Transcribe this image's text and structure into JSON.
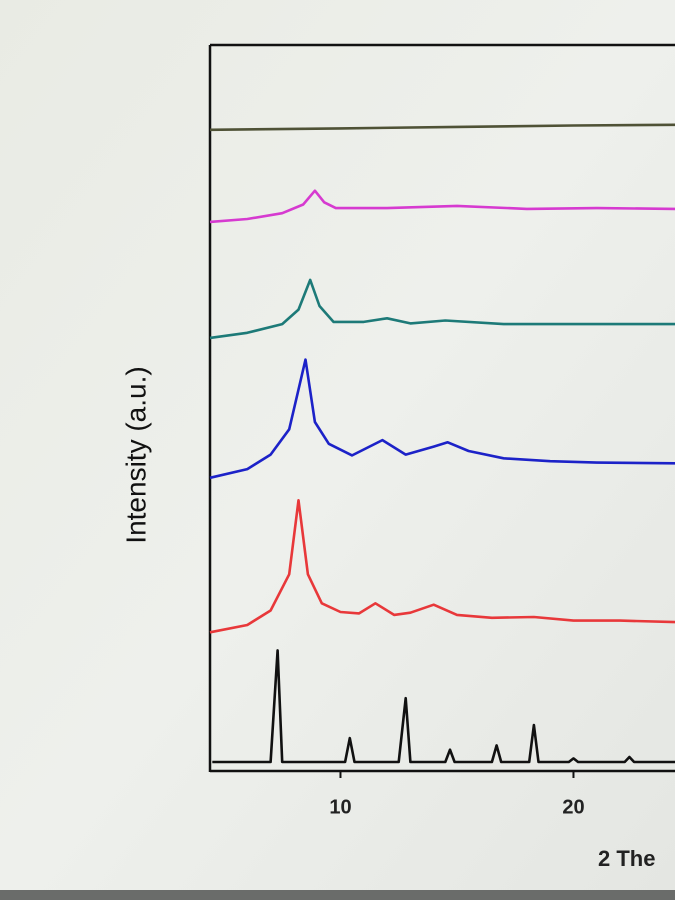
{
  "chart_data": {
    "type": "line",
    "y_label": "Intensity (a.u.)",
    "x_label": "2 The",
    "xlim": [
      4.4,
      24.4
    ],
    "xticks": [
      10,
      20
    ],
    "ylim": [
      0,
      100
    ],
    "series": [
      {
        "color": "#111111",
        "x": [
          4.5,
          7.0,
          7.3,
          7.5,
          10.2,
          10.4,
          10.6,
          12.5,
          12.8,
          13.0,
          14.5,
          14.7,
          14.9,
          16.5,
          16.7,
          16.9,
          18.1,
          18.3,
          18.5,
          19.8,
          20.0,
          20.2,
          22.2,
          22.4,
          22.6,
          24.4
        ],
        "values": [
          1.1,
          1.1,
          16.5,
          1.1,
          1.1,
          4.4,
          1.1,
          1.1,
          9.9,
          1.1,
          1.1,
          2.8,
          1.1,
          1.1,
          3.4,
          1.1,
          1.1,
          6.2,
          1.1,
          1.1,
          1.6,
          1.1,
          1.1,
          1.8,
          1.1,
          1.1
        ]
      },
      {
        "color": "#e8383a",
        "x": [
          4.4,
          6,
          7,
          7.8,
          8.2,
          8.6,
          9.2,
          10,
          10.8,
          11.5,
          12.3,
          13,
          14,
          15,
          16.5,
          18.3,
          20,
          22,
          24.4
        ],
        "values": [
          19,
          20,
          22,
          27,
          37.2,
          27,
          23,
          21.8,
          21.6,
          23,
          21.4,
          21.7,
          22.8,
          21.4,
          21,
          21.1,
          20.6,
          20.6,
          20.4
        ]
      },
      {
        "color": "#1c22c8",
        "x": [
          4.4,
          6,
          7,
          7.8,
          8.5,
          8.9,
          9.5,
          10.5,
          11.8,
          12.8,
          14,
          14.6,
          15.5,
          17,
          19,
          21,
          24.4
        ],
        "values": [
          40.3,
          41.5,
          43.5,
          47,
          56.6,
          48,
          45,
          43.4,
          45.5,
          43.5,
          44.6,
          45.2,
          44,
          43,
          42.6,
          42.4,
          42.3
        ]
      },
      {
        "color": "#1d7a78",
        "x": [
          4.4,
          6,
          7.5,
          8.2,
          8.7,
          9.1,
          9.7,
          11,
          12,
          13,
          14.5,
          17,
          20,
          24.4
        ],
        "values": [
          59.6,
          60.3,
          61.5,
          63.5,
          67.6,
          64,
          61.8,
          61.8,
          62.3,
          61.6,
          62,
          61.5,
          61.5,
          61.5
        ]
      },
      {
        "color": "#d63ad0",
        "x": [
          4.4,
          6,
          7.5,
          8.4,
          8.9,
          9.3,
          9.8,
          12,
          15,
          18,
          21,
          24.4
        ],
        "values": [
          75.6,
          76,
          76.8,
          78,
          79.9,
          78.3,
          77.5,
          77.5,
          77.8,
          77.4,
          77.5,
          77.4
        ]
      },
      {
        "color": "#4f5236",
        "x": [
          4.4,
          10,
          15,
          20,
          24.4
        ],
        "values": [
          88.3,
          88.5,
          88.7,
          88.9,
          89
        ]
      }
    ]
  }
}
